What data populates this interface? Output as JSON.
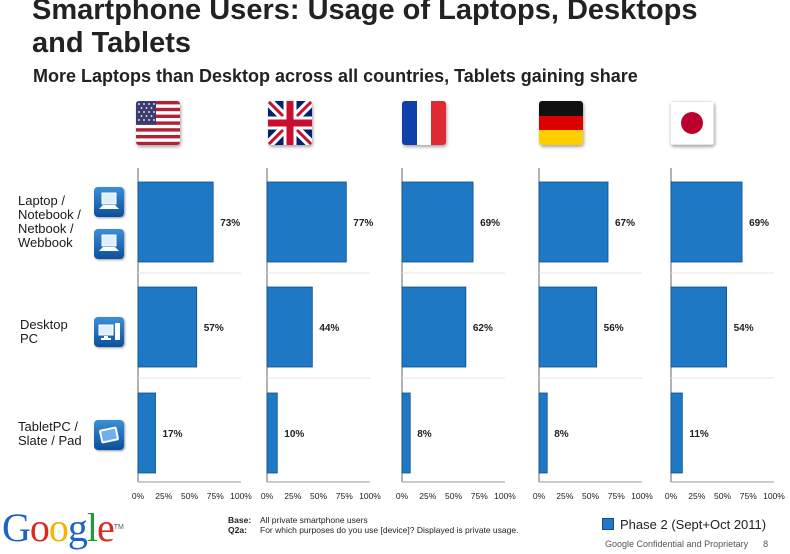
{
  "title": "Smartphone Users: Usage of Laptops, Desktops and Tablets",
  "subtitle": "More Laptops than Desktop across all countries, Tablets gaining share",
  "flags": [
    {
      "name": "USA",
      "icon": "us-flag-icon"
    },
    {
      "name": "UK",
      "icon": "uk-flag-icon"
    },
    {
      "name": "France",
      "icon": "france-flag-icon"
    },
    {
      "name": "Germany",
      "icon": "germany-flag-icon"
    },
    {
      "name": "Japan",
      "icon": "japan-flag-icon"
    }
  ],
  "categories": [
    {
      "label_lines": [
        "Laptop /",
        "Notebook /",
        "Netbook /",
        "Webbook"
      ],
      "icons": [
        "laptop-icon",
        "laptop-icon"
      ]
    },
    {
      "label_lines": [
        "Desktop",
        "PC"
      ],
      "icons": [
        "desktop-pc-icon"
      ]
    },
    {
      "label_lines": [
        "TabletPC /",
        "Slate / Pad"
      ],
      "icons": [
        "tablet-icon"
      ]
    }
  ],
  "chart_data": {
    "type": "bar",
    "orientation": "horizontal",
    "title": "Smartphone Users: Usage of Laptops, Desktops and Tablets",
    "subtitle": "More Laptops than Desktop across all countries, Tablets gaining share",
    "categories": [
      "Laptop / Notebook / Netbook / Webbook",
      "Desktop PC",
      "TabletPC / Slate / Pad"
    ],
    "panels": [
      "USA",
      "UK",
      "France",
      "Germany",
      "Japan"
    ],
    "series": [
      {
        "name": "Phase 2 (Sept+Oct 2011)",
        "panel": "USA",
        "values": [
          73,
          57,
          17
        ],
        "labels": [
          "73%",
          "57%",
          "17%"
        ]
      },
      {
        "name": "Phase 2 (Sept+Oct 2011)",
        "panel": "UK",
        "values": [
          77,
          44,
          10
        ],
        "labels": [
          "77%",
          "44%",
          "10%"
        ]
      },
      {
        "name": "Phase 2 (Sept+Oct 2011)",
        "panel": "France",
        "values": [
          69,
          62,
          8
        ],
        "labels": [
          "69%",
          "62%",
          "8%"
        ]
      },
      {
        "name": "Phase 2 (Sept+Oct 2011)",
        "panel": "Germany",
        "values": [
          67,
          56,
          8
        ],
        "labels": [
          "67%",
          "56%",
          "8%"
        ]
      },
      {
        "name": "Phase 2 (Sept+Oct 2011)",
        "panel": "Japan",
        "values": [
          69,
          54,
          11
        ],
        "labels": [
          "69%",
          "54%",
          "11%"
        ]
      }
    ],
    "xlim": [
      0,
      100
    ],
    "xticks": [
      "0%",
      "25%",
      "50%",
      "75%",
      "100%"
    ],
    "xlabel": "",
    "ylabel": "",
    "legend": {
      "position": "bottom-right",
      "label": "Phase 2 (Sept+Oct 2011)"
    },
    "bar_color": "#1f78c4"
  },
  "footer": {
    "logo": "Google",
    "base_key": "Base:",
    "base_text": "All private smartphone users",
    "q_key": "Q2a:",
    "q_text": "For which purposes do you use [device]? Displayed is private usage.",
    "legend_label": "Phase 2 (Sept+Oct 2011)",
    "confidential": "Google Confidential and Proprietary",
    "page_number": "8"
  }
}
